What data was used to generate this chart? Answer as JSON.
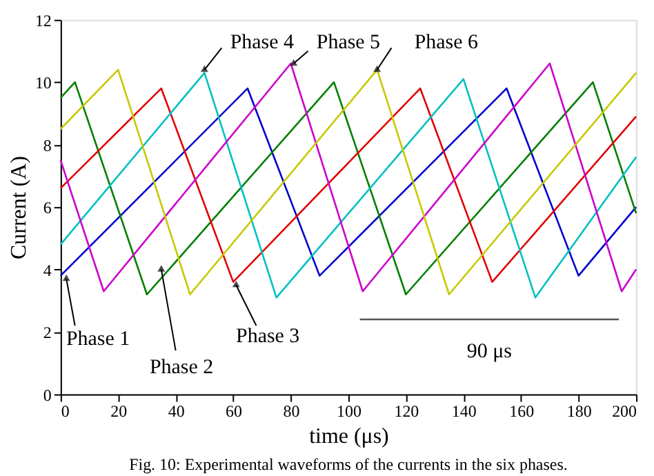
{
  "chart_data": {
    "type": "line",
    "xlabel": "time (μs)",
    "ylabel": "Current (A)",
    "xlim": [
      0,
      200
    ],
    "xticks": [
      0,
      20,
      40,
      60,
      80,
      100,
      120,
      140,
      160,
      180,
      200
    ],
    "ylim": [
      0,
      12
    ],
    "yticks": [
      0,
      2,
      4,
      6,
      8,
      10,
      12
    ],
    "grid": false,
    "marker": "none",
    "line_style": "solid",
    "series": [
      {
        "color": "#0000cc",
        "x": [
          0,
          65,
          90,
          155,
          180,
          200
        ],
        "values": [
          3.8,
          9.8,
          3.8,
          9.8,
          3.8,
          6.0
        ]
      },
      {
        "color": "#007f00",
        "x": [
          0,
          5,
          30,
          95,
          120,
          185,
          200
        ],
        "values": [
          9.5,
          10.0,
          3.2,
          10.0,
          3.2,
          10.0,
          5.8
        ]
      },
      {
        "color": "#e00000",
        "x": [
          0,
          35,
          60,
          125,
          150,
          200
        ],
        "values": [
          6.6,
          9.8,
          3.6,
          9.8,
          3.6,
          8.9
        ]
      },
      {
        "color": "#00c0c0",
        "x": [
          0,
          50,
          75,
          140,
          165,
          200
        ],
        "values": [
          4.8,
          10.3,
          3.1,
          10.1,
          3.1,
          7.6
        ]
      },
      {
        "color": "#cc00cc",
        "x": [
          0,
          15,
          80,
          105,
          170,
          195,
          200
        ],
        "values": [
          7.5,
          3.3,
          10.6,
          3.3,
          10.6,
          3.3,
          4.0
        ]
      },
      {
        "color": "#c8c800",
        "x": [
          0,
          20,
          45,
          110,
          135,
          200
        ],
        "values": [
          8.5,
          10.4,
          3.2,
          10.4,
          3.2,
          10.3
        ]
      },
      {
        "type": "line",
        "color": "#555555",
        "x": [
          104,
          194
        ],
        "values": [
          2.4,
          2.4
        ]
      }
    ],
    "annotations": [
      {
        "text": "Phase 1",
        "x": 2,
        "y": 3.7
      },
      {
        "text": "Phase 2",
        "x": 35,
        "y": 4.0
      },
      {
        "text": "Phase 3",
        "x": 61,
        "y": 3.5
      },
      {
        "text": "Phase 4",
        "x": 50,
        "y": 10.4
      },
      {
        "text": "Phase 5",
        "x": 81,
        "y": 10.6
      },
      {
        "text": "Phase 6",
        "x": 110,
        "y": 10.4
      },
      {
        "text": "90 μs",
        "x": 149,
        "y": 2.4
      },
      "Fig. 10: Experimental waveforms of the currents in the six phases."
    ]
  }
}
